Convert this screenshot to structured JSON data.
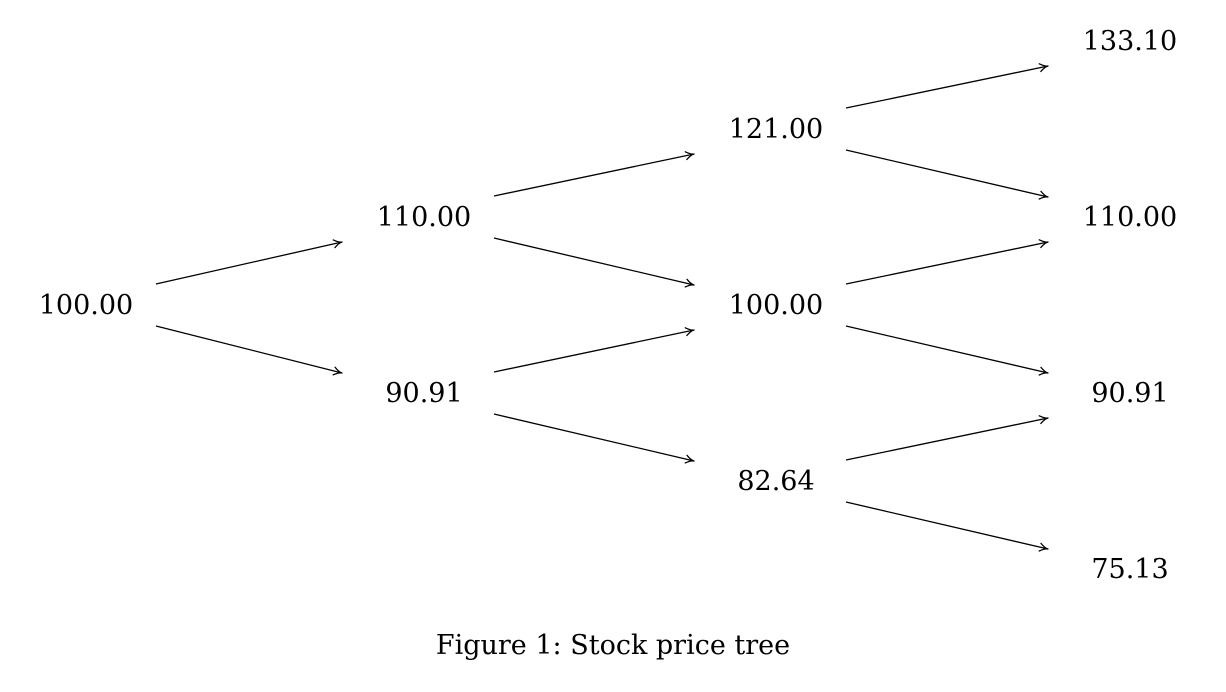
{
  "figure": {
    "caption": "Figure 1: Stock price tree"
  },
  "tree": {
    "levels": [
      [
        "100.00"
      ],
      [
        "110.00",
        "90.91"
      ],
      [
        "121.00",
        "100.00",
        "82.64"
      ],
      [
        "133.10",
        "110.00",
        "90.91",
        "75.13"
      ]
    ],
    "edges": [
      {
        "from": [
          0,
          0
        ],
        "to": [
          1,
          0
        ]
      },
      {
        "from": [
          0,
          0
        ],
        "to": [
          1,
          1
        ]
      },
      {
        "from": [
          1,
          0
        ],
        "to": [
          2,
          0
        ]
      },
      {
        "from": [
          1,
          0
        ],
        "to": [
          2,
          1
        ]
      },
      {
        "from": [
          1,
          1
        ],
        "to": [
          2,
          1
        ]
      },
      {
        "from": [
          1,
          1
        ],
        "to": [
          2,
          2
        ]
      },
      {
        "from": [
          2,
          0
        ],
        "to": [
          3,
          0
        ]
      },
      {
        "from": [
          2,
          0
        ],
        "to": [
          3,
          1
        ]
      },
      {
        "from": [
          2,
          1
        ],
        "to": [
          3,
          1
        ]
      },
      {
        "from": [
          2,
          1
        ],
        "to": [
          3,
          2
        ]
      },
      {
        "from": [
          2,
          2
        ],
        "to": [
          3,
          2
        ]
      },
      {
        "from": [
          2,
          2
        ],
        "to": [
          3,
          3
        ]
      }
    ]
  }
}
